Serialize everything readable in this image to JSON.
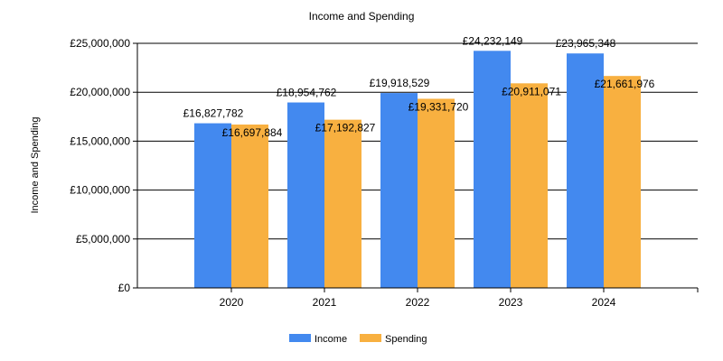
{
  "chart_data": {
    "type": "bar",
    "title": "Income and Spending",
    "xlabel": "",
    "ylabel": "Income and Spending",
    "categories": [
      "2020",
      "2021",
      "2022",
      "2023",
      "2024"
    ],
    "series": [
      {
        "name": "Income",
        "color": "#4389ef",
        "values": [
          16827782,
          18954762,
          19918529,
          24232149,
          23965348
        ],
        "labels": [
          "£16,827,782",
          "£18,954,762",
          "£19,918,529",
          "£24,232,149",
          "£23,965,348"
        ]
      },
      {
        "name": "Spending",
        "color": "#f8b040",
        "values": [
          16697884,
          17192827,
          19331720,
          20911071,
          21661976
        ],
        "labels": [
          "£16,697,884",
          "£17,192,827",
          "£19,331,720",
          "£20,911,071",
          "£21,661,976"
        ]
      }
    ],
    "ylim": [
      0,
      25000000
    ],
    "yticks": [
      0,
      5000000,
      10000000,
      15000000,
      20000000,
      25000000
    ],
    "ytick_labels": [
      "£0",
      "£5,000,000",
      "£10,000,000",
      "£15,000,000",
      "£20,000,000",
      "£25,000,000"
    ],
    "grid": true,
    "legend_position": "bottom-center"
  }
}
